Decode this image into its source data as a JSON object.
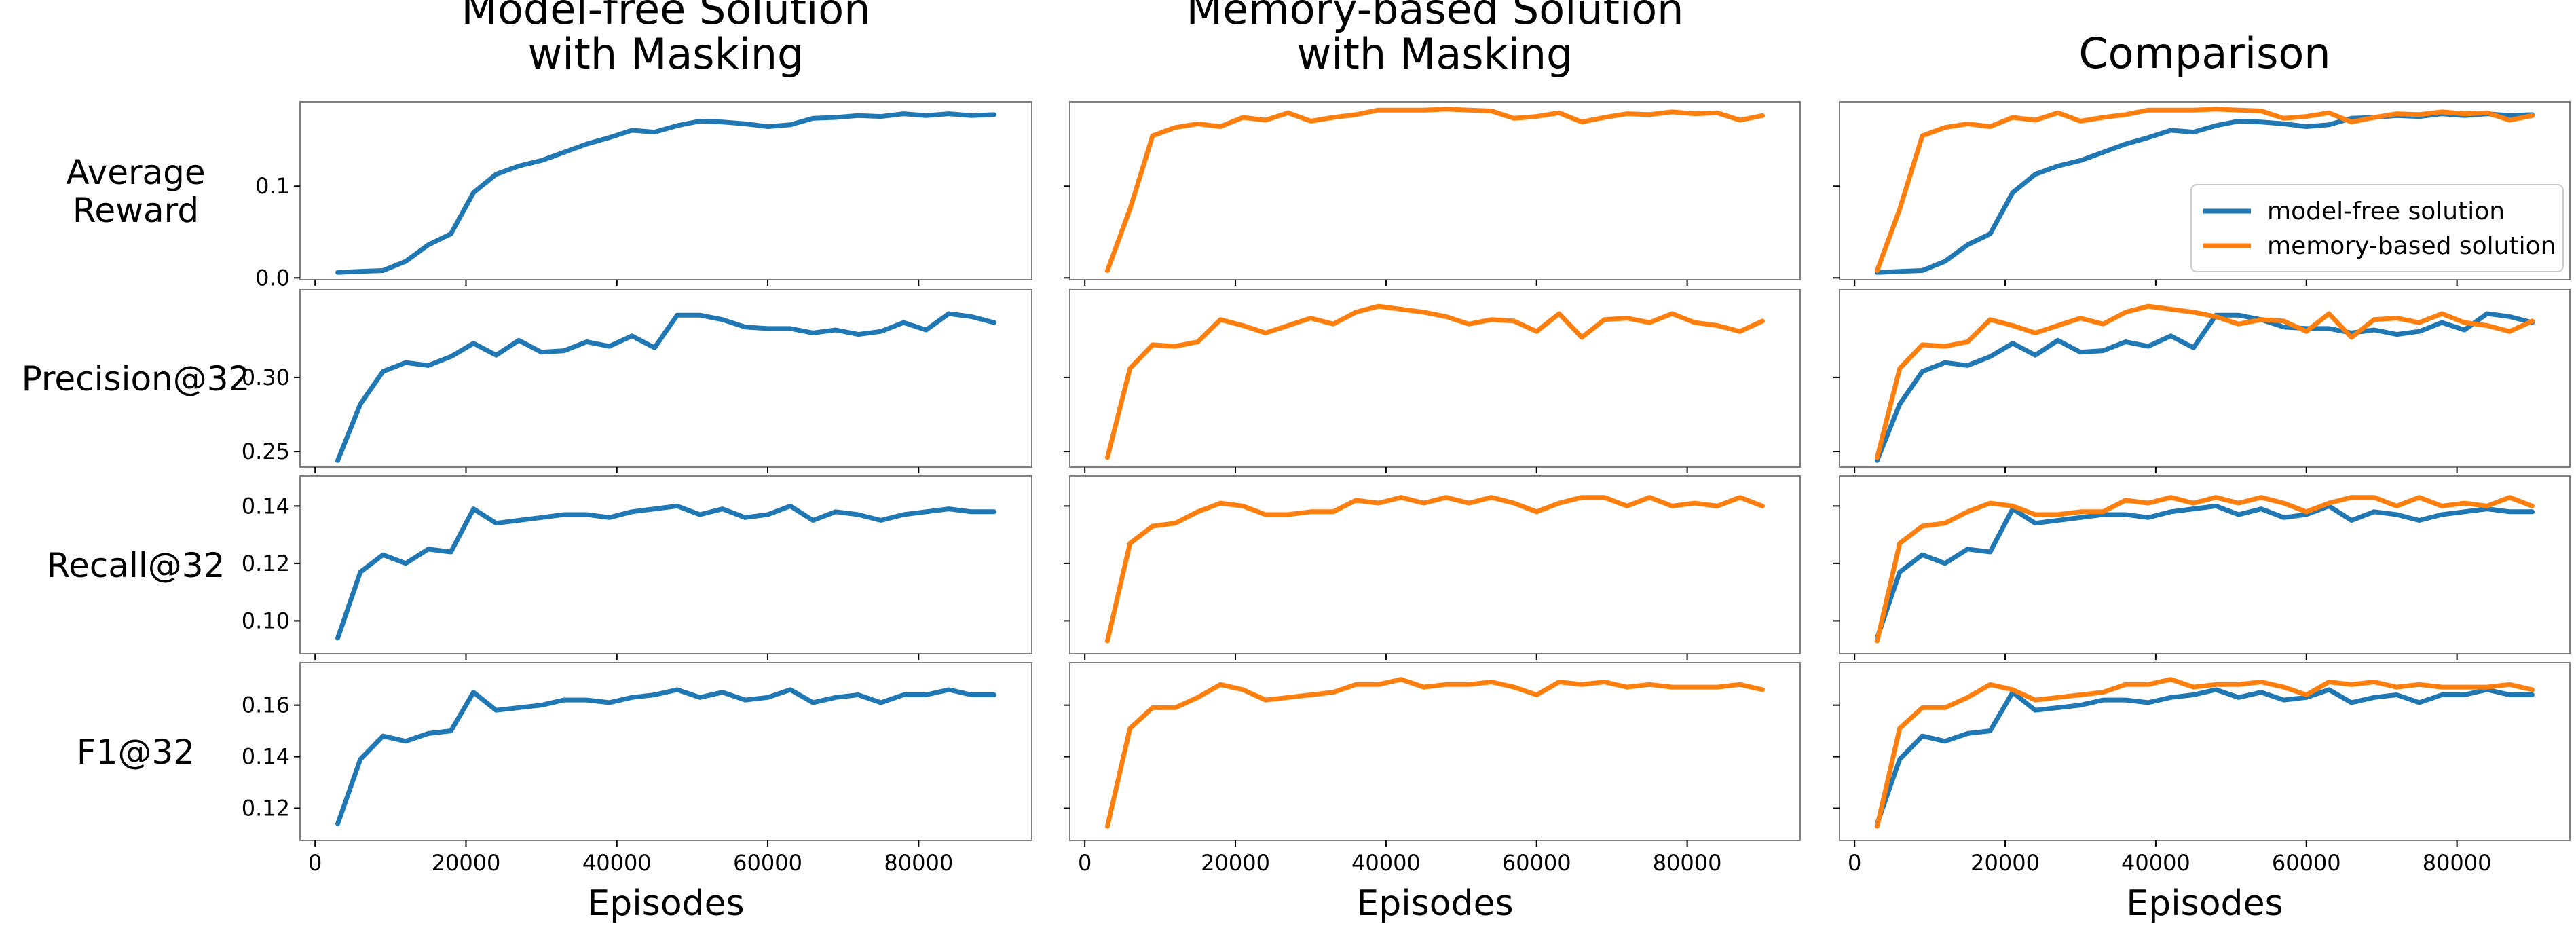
{
  "colors": {
    "model_free": "#1f77b4",
    "memory_based": "#ff7f0e"
  },
  "col_titles": [
    [
      "Model-free Solution",
      "with Masking"
    ],
    [
      "Memory-based Solution",
      "with Masking"
    ],
    [
      "Comparison"
    ]
  ],
  "row_labels": [
    [
      "Average",
      "Reward"
    ],
    [
      "Precision@32"
    ],
    [
      "Recall@32"
    ],
    [
      "F1@32"
    ]
  ],
  "xlabel": "Episodes",
  "legend": {
    "placement": "lower-right",
    "entries": [
      "model-free solution",
      "memory-based solution"
    ]
  },
  "chart_data": [
    {
      "type": "line",
      "metric_label": "Average Reward",
      "x": [
        3000,
        6000,
        9000,
        12000,
        15000,
        18000,
        21000,
        24000,
        27000,
        30000,
        33000,
        36000,
        39000,
        42000,
        45000,
        48000,
        51000,
        54000,
        57000,
        60000,
        63000,
        66000,
        69000,
        72000,
        75000,
        78000,
        81000,
        84000,
        87000,
        90000
      ],
      "xlim": [
        -2000,
        95000
      ],
      "xticks": [
        0,
        20000,
        40000,
        60000,
        80000
      ],
      "ylim": [
        -0.002,
        0.192
      ],
      "yticks": [
        0.0,
        0.1
      ],
      "ytick_labels": [
        "0.0",
        "0.1"
      ],
      "series": [
        {
          "key": "model_free",
          "name": "model-free solution",
          "values": [
            0.006,
            0.007,
            0.008,
            0.018,
            0.036,
            0.048,
            0.093,
            0.113,
            0.122,
            0.128,
            0.137,
            0.146,
            0.153,
            0.161,
            0.159,
            0.166,
            0.171,
            0.17,
            0.168,
            0.165,
            0.167,
            0.174,
            0.175,
            0.177,
            0.176,
            0.179,
            0.177,
            0.179,
            0.177,
            0.178
          ]
        },
        {
          "key": "memory_based",
          "name": "memory-based solution",
          "values": [
            0.008,
            0.075,
            0.155,
            0.164,
            0.168,
            0.165,
            0.175,
            0.172,
            0.18,
            0.171,
            0.175,
            0.178,
            0.183,
            0.183,
            0.183,
            0.184,
            0.183,
            0.182,
            0.174,
            0.176,
            0.18,
            0.17,
            0.175,
            0.179,
            0.178,
            0.181,
            0.179,
            0.18,
            0.172,
            0.177
          ]
        }
      ]
    },
    {
      "type": "line",
      "metric_label": "Precision@32",
      "x": [
        3000,
        6000,
        9000,
        12000,
        15000,
        18000,
        21000,
        24000,
        27000,
        30000,
        33000,
        36000,
        39000,
        42000,
        45000,
        48000,
        51000,
        54000,
        57000,
        60000,
        63000,
        66000,
        69000,
        72000,
        75000,
        78000,
        81000,
        84000,
        87000,
        90000
      ],
      "xlim": [
        -2000,
        95000
      ],
      "xticks": [
        0,
        20000,
        40000,
        60000,
        80000
      ],
      "ylim": [
        0.2395,
        0.3595
      ],
      "yticks": [
        0.25,
        0.3
      ],
      "ytick_labels": [
        "0.25",
        "0.30"
      ],
      "series": [
        {
          "key": "model_free",
          "name": "model-free solution",
          "values": [
            0.244,
            0.282,
            0.304,
            0.31,
            0.308,
            0.314,
            0.323,
            0.315,
            0.325,
            0.317,
            0.318,
            0.324,
            0.321,
            0.328,
            0.32,
            0.342,
            0.342,
            0.339,
            0.334,
            0.333,
            0.333,
            0.33,
            0.332,
            0.329,
            0.331,
            0.337,
            0.332,
            0.343,
            0.341,
            0.337
          ]
        },
        {
          "key": "memory_based",
          "name": "memory-based solution",
          "values": [
            0.246,
            0.306,
            0.322,
            0.321,
            0.324,
            0.339,
            0.335,
            0.33,
            0.335,
            0.34,
            0.336,
            0.344,
            0.348,
            0.346,
            0.344,
            0.341,
            0.336,
            0.339,
            0.338,
            0.331,
            0.343,
            0.327,
            0.339,
            0.34,
            0.337,
            0.343,
            0.337,
            0.335,
            0.331,
            0.338
          ]
        }
      ]
    },
    {
      "type": "line",
      "metric_label": "Recall@32",
      "x": [
        3000,
        6000,
        9000,
        12000,
        15000,
        18000,
        21000,
        24000,
        27000,
        30000,
        33000,
        36000,
        39000,
        42000,
        45000,
        48000,
        51000,
        54000,
        57000,
        60000,
        63000,
        66000,
        69000,
        72000,
        75000,
        78000,
        81000,
        84000,
        87000,
        90000
      ],
      "xlim": [
        -2000,
        95000
      ],
      "xticks": [
        0,
        20000,
        40000,
        60000,
        80000
      ],
      "ylim": [
        0.0885,
        0.1505
      ],
      "yticks": [
        0.1,
        0.12,
        0.14
      ],
      "ytick_labels": [
        "0.10",
        "0.12",
        "0.14"
      ],
      "series": [
        {
          "key": "model_free",
          "name": "model-free solution",
          "values": [
            0.094,
            0.117,
            0.123,
            0.12,
            0.125,
            0.124,
            0.139,
            0.134,
            0.135,
            0.136,
            0.137,
            0.137,
            0.136,
            0.138,
            0.139,
            0.14,
            0.137,
            0.139,
            0.136,
            0.137,
            0.14,
            0.135,
            0.138,
            0.137,
            0.135,
            0.137,
            0.138,
            0.139,
            0.138,
            0.138
          ]
        },
        {
          "key": "memory_based",
          "name": "memory-based solution",
          "values": [
            0.093,
            0.127,
            0.133,
            0.134,
            0.138,
            0.141,
            0.14,
            0.137,
            0.137,
            0.138,
            0.138,
            0.142,
            0.141,
            0.143,
            0.141,
            0.143,
            0.141,
            0.143,
            0.141,
            0.138,
            0.141,
            0.143,
            0.143,
            0.14,
            0.143,
            0.14,
            0.141,
            0.14,
            0.143,
            0.14
          ]
        }
      ]
    },
    {
      "type": "line",
      "metric_label": "F1@32",
      "x": [
        3000,
        6000,
        9000,
        12000,
        15000,
        18000,
        21000,
        24000,
        27000,
        30000,
        33000,
        36000,
        39000,
        42000,
        45000,
        48000,
        51000,
        54000,
        57000,
        60000,
        63000,
        66000,
        69000,
        72000,
        75000,
        78000,
        81000,
        84000,
        87000,
        90000
      ],
      "xlim": [
        -2000,
        95000
      ],
      "xticks": [
        0,
        20000,
        40000,
        60000,
        80000
      ],
      "ylim": [
        0.1075,
        0.1765
      ],
      "yticks": [
        0.12,
        0.14,
        0.16
      ],
      "ytick_labels": [
        "0.12",
        "0.14",
        "0.16"
      ],
      "series": [
        {
          "key": "model_free",
          "name": "model-free solution",
          "values": [
            0.114,
            0.139,
            0.148,
            0.146,
            0.149,
            0.15,
            0.165,
            0.158,
            0.159,
            0.16,
            0.162,
            0.162,
            0.161,
            0.163,
            0.164,
            0.166,
            0.163,
            0.165,
            0.162,
            0.163,
            0.166,
            0.161,
            0.163,
            0.164,
            0.161,
            0.164,
            0.164,
            0.166,
            0.164,
            0.164
          ]
        },
        {
          "key": "memory_based",
          "name": "memory-based solution",
          "values": [
            0.113,
            0.151,
            0.159,
            0.159,
            0.163,
            0.168,
            0.166,
            0.162,
            0.163,
            0.164,
            0.165,
            0.168,
            0.168,
            0.17,
            0.167,
            0.168,
            0.168,
            0.169,
            0.167,
            0.164,
            0.169,
            0.168,
            0.169,
            0.167,
            0.168,
            0.167,
            0.167,
            0.167,
            0.168,
            0.166
          ]
        }
      ]
    }
  ]
}
